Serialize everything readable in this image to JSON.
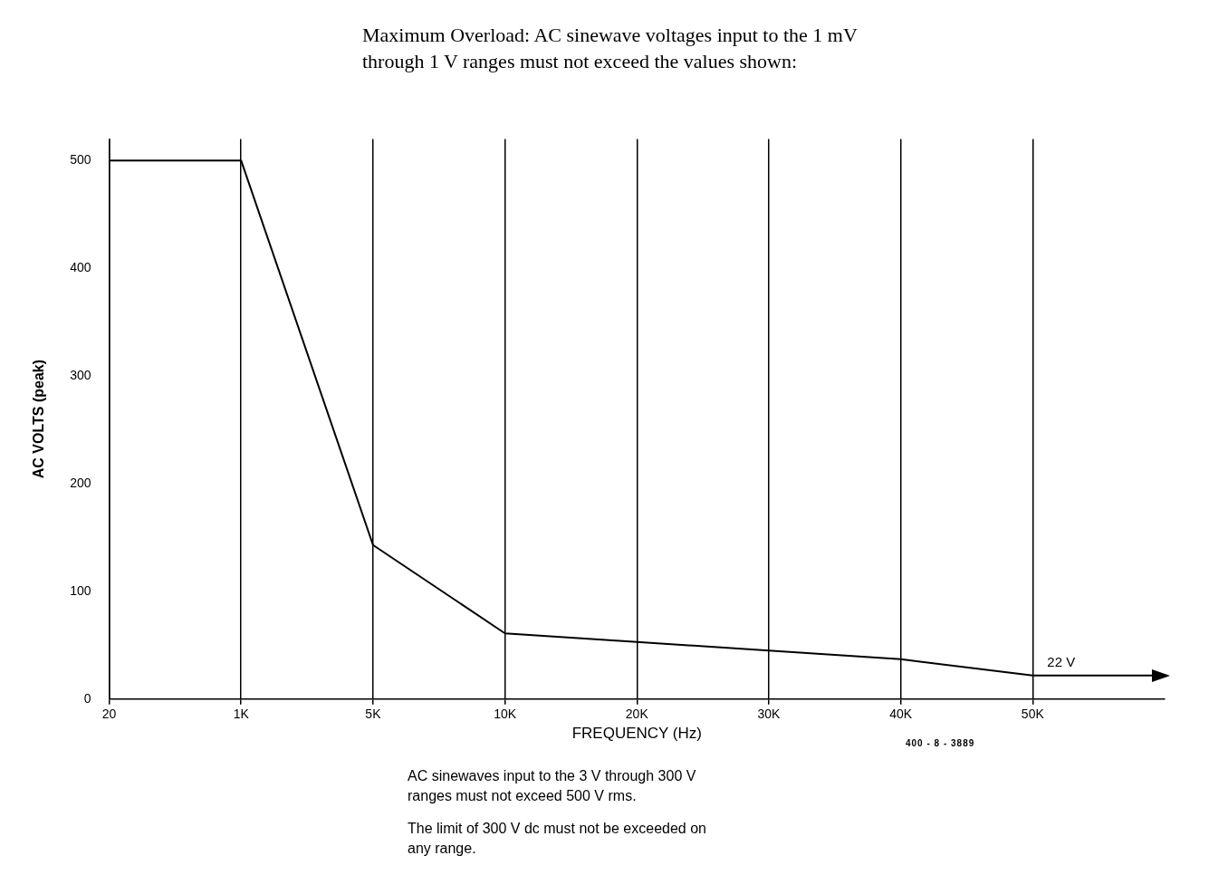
{
  "chart_data": {
    "type": "line",
    "title": "Maximum Overload: AC sinewave voltages input to the 1 mV through 1 V ranges must not exceed the values shown:",
    "xlabel": "FREQUENCY (Hz)",
    "ylabel": "AC VOLTS (peak)",
    "categories": [
      "20",
      "1K",
      "5K",
      "10K",
      "20K",
      "30K",
      "40K",
      "50K",
      null
    ],
    "series": [
      {
        "color": "#000000",
        "values": [
          500,
          500,
          143,
          61,
          53,
          45,
          37,
          22,
          22
        ]
      }
    ],
    "ylim": [
      0,
      520
    ],
    "yticks": [
      0,
      100,
      200,
      300,
      400,
      500
    ],
    "grid": "x",
    "legend": false,
    "annotations": [
      {
        "text": "22 V",
        "x": "50K",
        "y": 22
      },
      "400 - 8 - 3889",
      "AC sinewaves input to the 3 V through 300 V ranges must not exceed 500 V rms.",
      "The limit of 300 V dc must not be exceeded on any range."
    ]
  }
}
